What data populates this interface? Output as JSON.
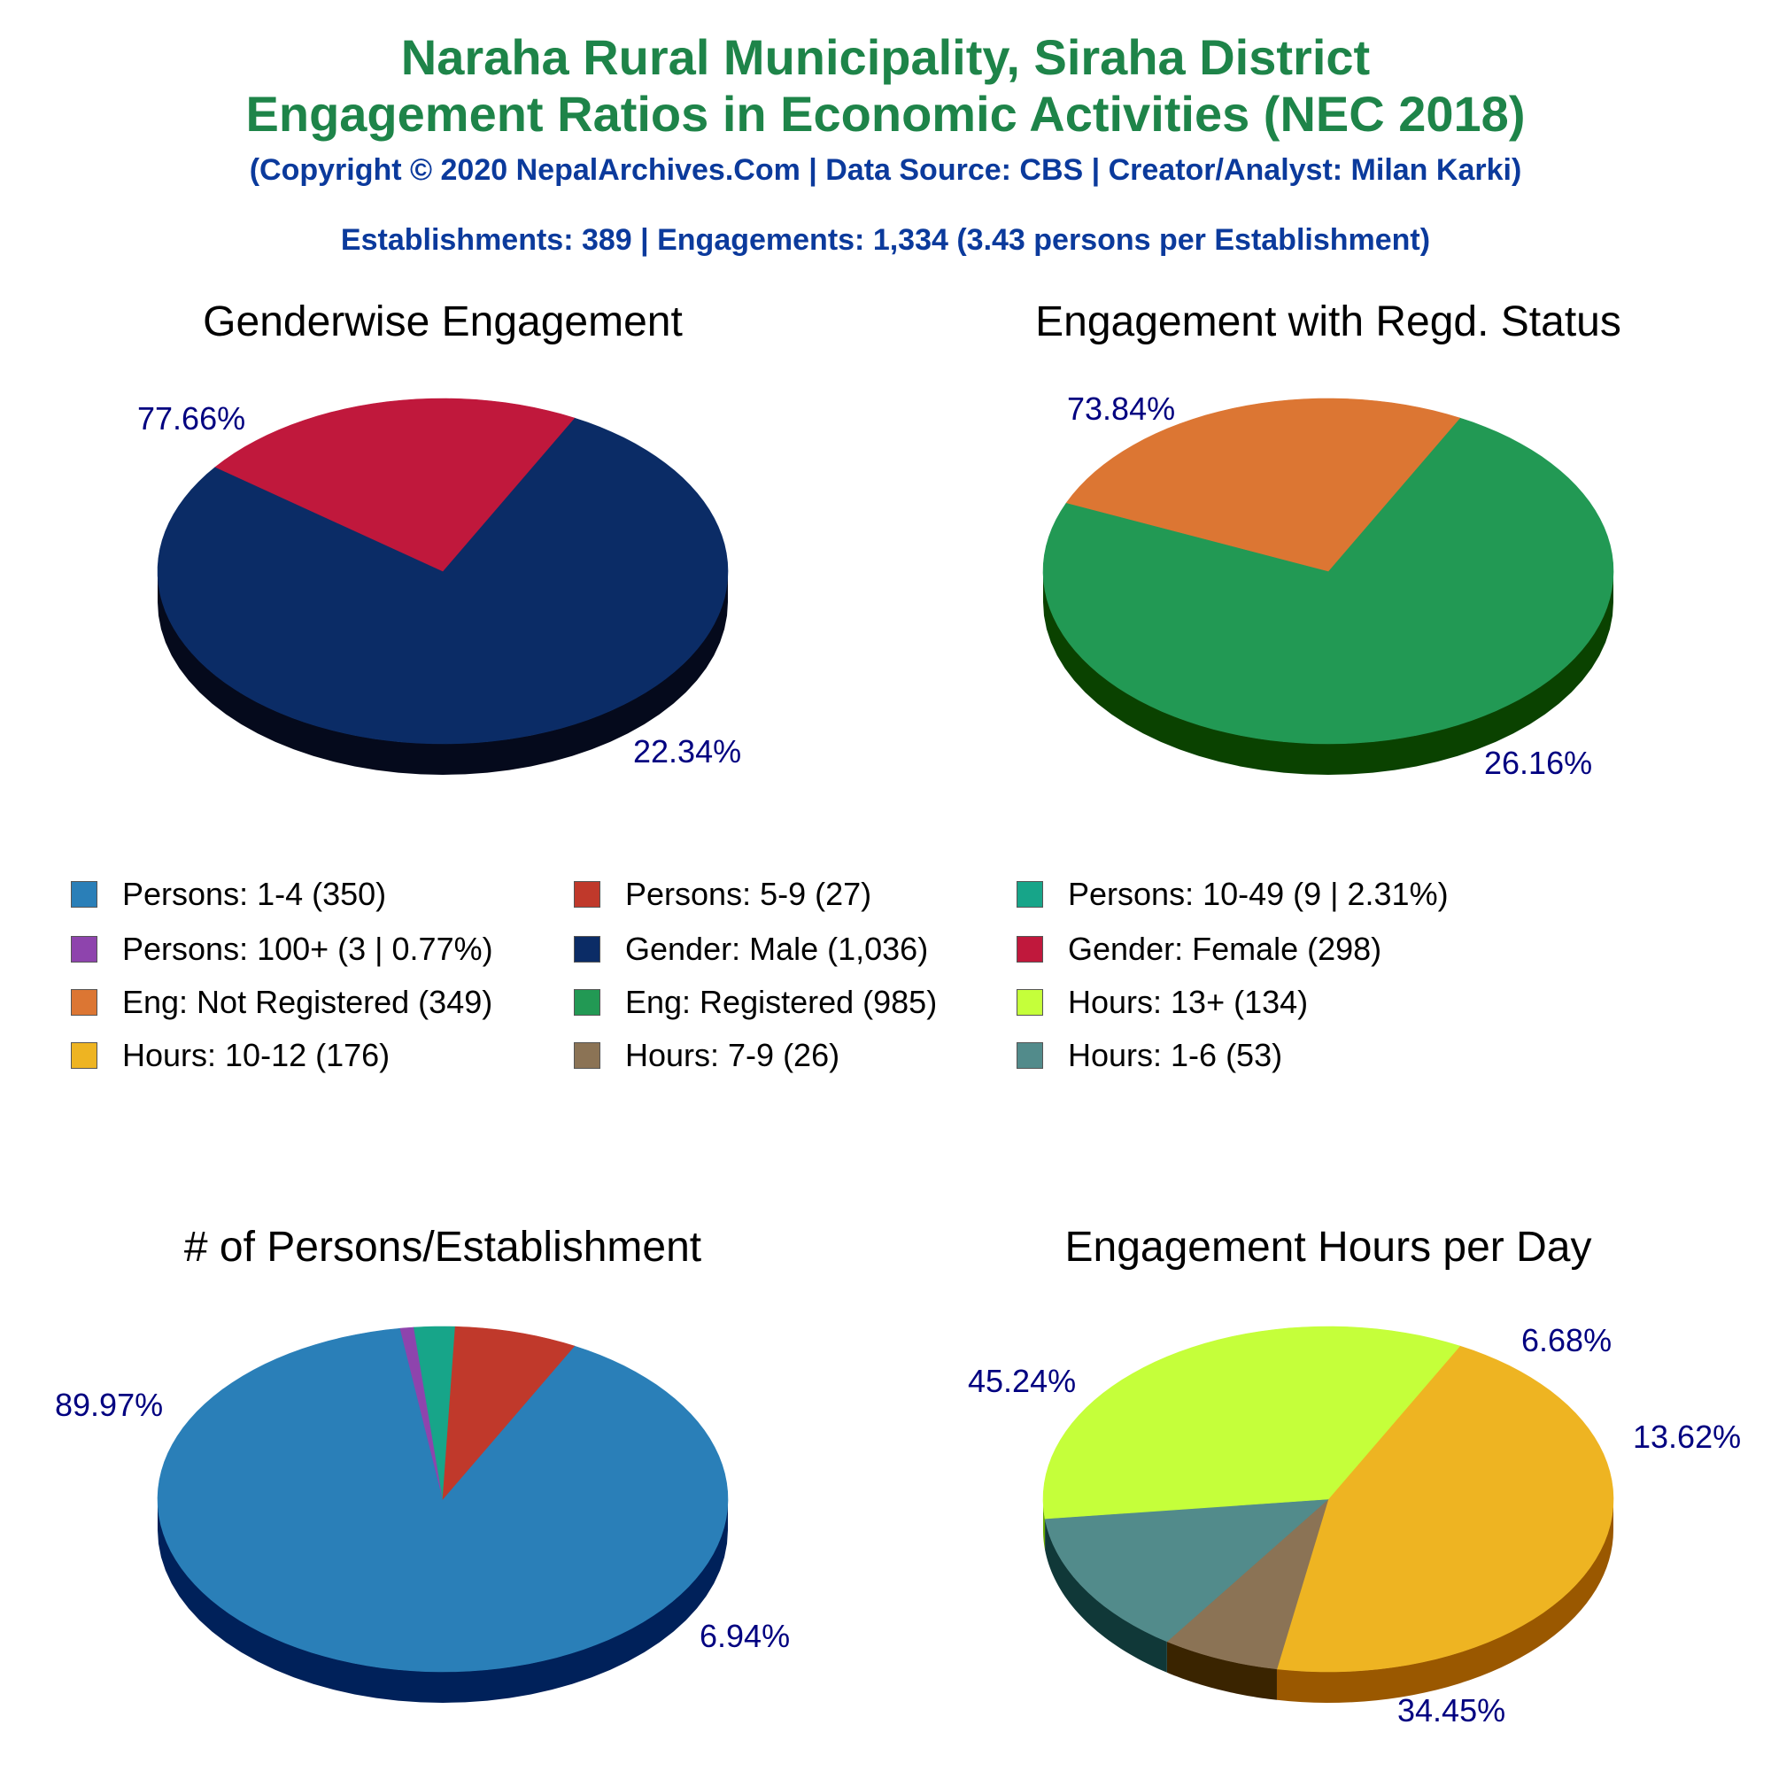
{
  "header": {
    "title_line1": "Naraha Rural Municipality, Siraha District",
    "title_line2": "Engagement Ratios in Economic Activities (NEC 2018)",
    "copyright": "(Copyright © 2020 NepalArchives.Com | Data Source: CBS | Creator/Analyst: Milan Karki)",
    "summary": "Establishments: 389 | Engagements: 1,334 (3.43 persons per Establishment)"
  },
  "legend": [
    {
      "label": "Persons: 1-4 (350)",
      "color": "#2a7fb8"
    },
    {
      "label": "Persons: 5-9 (27)",
      "color": "#c0392b"
    },
    {
      "label": "Persons: 10-49 (9 | 2.31%)",
      "color": "#17a589"
    },
    {
      "label": "Persons: 100+ (3 | 0.77%)",
      "color": "#8e44ad"
    },
    {
      "label": "Gender: Male (1,036)",
      "color": "#0b2c66"
    },
    {
      "label": "Gender: Female (298)",
      "color": "#c0183c"
    },
    {
      "label": "Eng: Not Registered (349)",
      "color": "#dc7633"
    },
    {
      "label": "Eng: Registered (985)",
      "color": "#229954"
    },
    {
      "label": "Hours: 13+ (134)",
      "color": "#c5ff3a"
    },
    {
      "label": "Hours: 10-12 (176)",
      "color": "#eeb422"
    },
    {
      "label": "Hours: 7-9 (26)",
      "color": "#8b7355"
    },
    {
      "label": "Hours: 1-6 (53)",
      "color": "#528b8b"
    }
  ],
  "chart_data": [
    {
      "type": "pie",
      "title": "Genderwise Engagement",
      "slices": [
        {
          "name": "Gender: Male",
          "value": 1036,
          "percent_label": "77.66%",
          "color": "#0b2c66",
          "side_color": "#050a1c"
        },
        {
          "name": "Gender: Female",
          "value": 298,
          "percent_label": "22.34%",
          "color": "#c0183c",
          "side_color": "#6b0000"
        }
      ]
    },
    {
      "type": "pie",
      "title": "Engagement with Regd. Status",
      "slices": [
        {
          "name": "Eng: Registered",
          "value": 985,
          "percent_label": "73.84%",
          "color": "#229954",
          "side_color": "#0a4200"
        },
        {
          "name": "Eng: Not Registered",
          "value": 349,
          "percent_label": "26.16%",
          "color": "#dc7633",
          "side_color": "#7a1a00"
        }
      ]
    },
    {
      "type": "pie",
      "title": "# of Persons/Establishment",
      "slices": [
        {
          "name": "Persons: 1-4",
          "value": 350,
          "percent_label": "89.97%",
          "color": "#2a7fb8",
          "side_color": "#00215a"
        },
        {
          "name": "Persons: 100+",
          "value": 3,
          "percent_label": "",
          "color": "#8e44ad",
          "side_color": "#3a005a"
        },
        {
          "name": "Persons: 10-49",
          "value": 9,
          "percent_label": "",
          "color": "#17a589",
          "side_color": "#004a30"
        },
        {
          "name": "Persons: 5-9",
          "value": 27,
          "percent_label": "6.94%",
          "color": "#c0392b",
          "side_color": "#6b0000"
        }
      ]
    },
    {
      "type": "pie",
      "title": "Engagement Hours per Day",
      "slices": [
        {
          "name": "Hours: 10-12",
          "value": 176,
          "percent_label": "45.24%",
          "color": "#eeb422",
          "side_color": "#9a5800"
        },
        {
          "name": "Hours: 7-9",
          "value": 26,
          "percent_label": "6.68%",
          "color": "#8b7355",
          "side_color": "#3a2400"
        },
        {
          "name": "Hours: 1-6",
          "value": 53,
          "percent_label": "13.62%",
          "color": "#528b8b",
          "side_color": "#103838"
        },
        {
          "name": "Hours: 13+",
          "value": 134,
          "percent_label": "34.45%",
          "color": "#c5ff3a",
          "side_color": "#66aa00"
        }
      ]
    }
  ]
}
